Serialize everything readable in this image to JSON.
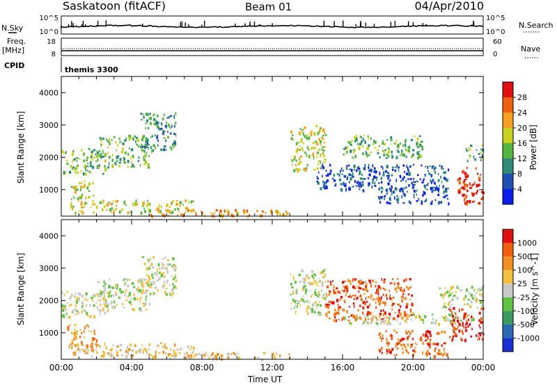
{
  "header": {
    "station": "Saskatoon (fitACF)",
    "beam": "Beam 01",
    "date": "04/Apr/2010"
  },
  "top_panels": {
    "nsky_label": "N.Sky",
    "nsearch_label": "N.Search",
    "nsky_ticks": [
      "10^5",
      "10^0"
    ],
    "nsearch_ticks": [
      "10^5",
      "10^0"
    ],
    "freq_label_line1": "Freq.",
    "freq_label_line2": "[MHz]",
    "freq_ticks": [
      "18",
      "8"
    ],
    "nave_label": "Nave",
    "nave_ticks": [
      "60",
      "0"
    ],
    "cpid_label": "CPID",
    "cpid_value": "themis 3300"
  },
  "chart_data": [
    {
      "type": "heatmap",
      "name": "power",
      "ylabel": "Slant Range [km]",
      "ylim": [
        180,
        4500
      ],
      "y_ticks": [
        "1000",
        "2000",
        "3000",
        "4000"
      ],
      "xlim_hours": [
        0,
        24
      ],
      "x_ticks": [
        "00:00",
        "04:00",
        "08:00",
        "12:00",
        "16:00",
        "20:00",
        "00:00"
      ],
      "colorbar": {
        "label": "Power [dB]",
        "ticks": [
          "4",
          "8",
          "12",
          "16",
          "20",
          "24",
          "28"
        ],
        "colors": [
          "#0a1ee8",
          "#1f4fb0",
          "#2f8a78",
          "#56b440",
          "#c8d020",
          "#f5a020",
          "#ee6010",
          "#e01010"
        ]
      },
      "regions": [
        {
          "t0": 0.0,
          "t1": 2.5,
          "r0": 1500,
          "r1": 2300,
          "level": 3
        },
        {
          "t0": 0.5,
          "t1": 1.8,
          "r0": 700,
          "r1": 1300,
          "level": 4
        },
        {
          "t0": 2.0,
          "t1": 5.0,
          "r0": 1700,
          "r1": 2700,
          "level": 3
        },
        {
          "t0": 4.5,
          "t1": 6.5,
          "r0": 2200,
          "r1": 3400,
          "level": 2
        },
        {
          "t0": 0.5,
          "t1": 7.5,
          "r0": 300,
          "r1": 700,
          "level": 4
        },
        {
          "t0": 5.0,
          "t1": 13.0,
          "r0": 200,
          "r1": 400,
          "level": 5
        },
        {
          "t0": 13.0,
          "t1": 15.0,
          "r0": 1600,
          "r1": 3000,
          "level": 4
        },
        {
          "t0": 14.5,
          "t1": 22.0,
          "r0": 1000,
          "r1": 1800,
          "level": 1
        },
        {
          "t0": 16.0,
          "t1": 20.5,
          "r0": 2000,
          "r1": 2700,
          "level": 3
        },
        {
          "t0": 18.0,
          "t1": 22.0,
          "r0": 600,
          "r1": 1100,
          "level": 1
        },
        {
          "t0": 22.5,
          "t1": 24.0,
          "r0": 600,
          "r1": 1700,
          "level": 7
        },
        {
          "t0": 23.0,
          "t1": 24.0,
          "r0": 1900,
          "r1": 2400,
          "level": 3
        }
      ]
    },
    {
      "type": "heatmap",
      "name": "velocity",
      "ylabel": "Slant Range [km]",
      "ylim": [
        180,
        4500
      ],
      "y_ticks": [
        "1000",
        "2000",
        "3000",
        "4000"
      ],
      "xlim_hours": [
        0,
        24
      ],
      "x_ticks": [
        "00:00",
        "04:00",
        "08:00",
        "12:00",
        "16:00",
        "20:00",
        "00:00"
      ],
      "xlabel": "Time UT",
      "colorbar": {
        "label": "Velocity [m s^-1]",
        "ticks": [
          "1000",
          "500",
          "100",
          "25",
          "-25",
          "-100",
          "-500",
          "-1000"
        ],
        "colors": [
          "#1830d0",
          "#2a6ab0",
          "#3a9a60",
          "#60c040",
          "#c8c8c8",
          "#f0c040",
          "#f09020",
          "#f06010",
          "#e01010"
        ]
      },
      "regions": [
        {
          "t0": 0.0,
          "t1": 2.5,
          "r0": 1500,
          "r1": 2300,
          "level": 4
        },
        {
          "t0": 0.3,
          "t1": 2.0,
          "r0": 600,
          "r1": 1300,
          "level": 6
        },
        {
          "t0": 2.0,
          "t1": 5.0,
          "r0": 1700,
          "r1": 2700,
          "level": 4
        },
        {
          "t0": 4.5,
          "t1": 6.5,
          "r0": 2200,
          "r1": 3400,
          "level": 4
        },
        {
          "t0": 0.5,
          "t1": 7.5,
          "r0": 300,
          "r1": 700,
          "level": 5
        },
        {
          "t0": 5.0,
          "t1": 13.0,
          "r0": 200,
          "r1": 400,
          "level": 5
        },
        {
          "t0": 13.0,
          "t1": 15.0,
          "r0": 1600,
          "r1": 3000,
          "level": 4
        },
        {
          "t0": 15.0,
          "t1": 20.0,
          "r0": 1400,
          "r1": 2700,
          "level": 7
        },
        {
          "t0": 16.0,
          "t1": 23.5,
          "r0": 1300,
          "r1": 1600,
          "level": 4
        },
        {
          "t0": 18.0,
          "t1": 22.0,
          "r0": 300,
          "r1": 1100,
          "level": 7
        },
        {
          "t0": 22.0,
          "t1": 24.0,
          "r0": 800,
          "r1": 1800,
          "level": 8
        },
        {
          "t0": 21.5,
          "t1": 24.0,
          "r0": 1800,
          "r1": 2500,
          "level": 4
        }
      ]
    }
  ]
}
